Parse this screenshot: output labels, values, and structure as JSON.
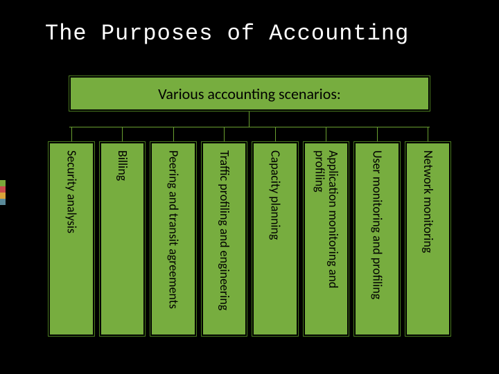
{
  "slide": {
    "title": "The Purposes of Accounting",
    "background_color": "#000000",
    "title_color": "#ffffff",
    "title_font": "Consolas",
    "title_fontsize": 32
  },
  "diagram": {
    "type": "tree",
    "box_fill": "#77ad3f",
    "box_border": "#000000",
    "box_outline": "#4a7a1f",
    "connector_color": "#6aa030",
    "text_color": "#000000",
    "parent": {
      "label": "Various accounting scenarios:",
      "fontsize": 22
    },
    "children_fontsize": 18,
    "children": [
      {
        "label": "Security analysis"
      },
      {
        "label": "Billing"
      },
      {
        "label": "Peering and transit agreements"
      },
      {
        "label": "Traffic profiling and engineering"
      },
      {
        "label": "Capacity planning"
      },
      {
        "label": "Application monitoring and profiling"
      },
      {
        "label": "User monitoring and profiling"
      },
      {
        "label": "Network monitoring"
      }
    ]
  },
  "accent_colors": [
    "#7aa83a",
    "#c94a4a",
    "#d9a33a",
    "#5a8a9a"
  ]
}
